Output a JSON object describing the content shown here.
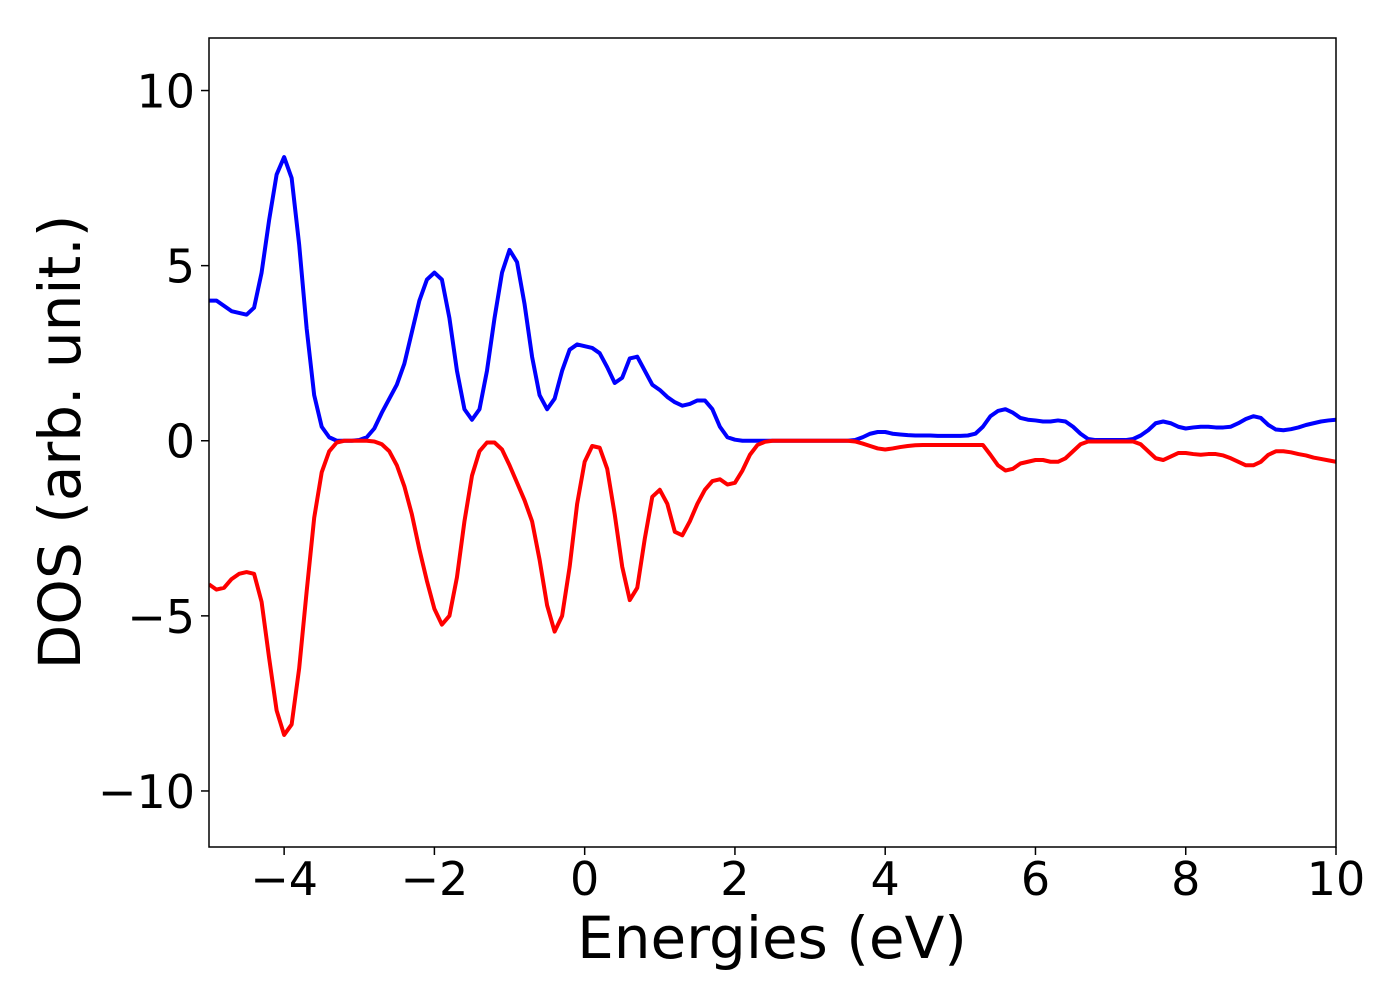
{
  "chart_data": {
    "type": "line",
    "xlabel": "Energies (eV)",
    "ylabel": "DOS (arb. unit.)",
    "x": [
      -5,
      -4.9,
      -4.8,
      -4.7,
      -4.6,
      -4.5,
      -4.4,
      -4.3,
      -4.2,
      -4.1,
      -4,
      -3.9,
      -3.8,
      -3.7,
      -3.6,
      -3.5,
      -3.4,
      -3.3,
      -3.2,
      -3.1,
      -3,
      -2.9,
      -2.8,
      -2.7,
      -2.6,
      -2.5,
      -2.4,
      -2.3,
      -2.2,
      -2.1,
      -2,
      -1.9,
      -1.8,
      -1.7,
      -1.6,
      -1.5,
      -1.4,
      -1.3,
      -1.2,
      -1.1,
      -1,
      -0.9,
      -0.8,
      -0.7,
      -0.6,
      -0.5,
      -0.4,
      -0.3,
      -0.2,
      -0.1,
      0,
      0.1,
      0.2,
      0.3,
      0.4,
      0.5,
      0.6,
      0.7,
      0.8,
      0.9,
      1,
      1.1,
      1.2,
      1.3,
      1.4,
      1.5,
      1.6,
      1.7,
      1.8,
      1.9,
      2,
      2.1,
      2.2,
      2.3,
      2.4,
      2.5,
      2.6,
      2.7,
      2.8,
      2.9,
      3,
      3.1,
      3.2,
      3.3,
      3.4,
      3.5,
      3.6,
      3.7,
      3.8,
      3.9,
      4,
      4.1,
      4.2,
      4.3,
      4.4,
      4.5,
      4.6,
      4.7,
      4.8,
      4.9,
      5,
      5.1,
      5.2,
      5.3,
      5.4,
      5.5,
      5.6,
      5.7,
      5.8,
      5.9,
      6,
      6.1,
      6.2,
      6.3,
      6.4,
      6.5,
      6.6,
      6.7,
      6.8,
      6.9,
      7,
      7.1,
      7.2,
      7.3,
      7.4,
      7.5,
      7.6,
      7.7,
      7.8,
      7.9,
      8,
      8.1,
      8.2,
      8.3,
      8.4,
      8.5,
      8.6,
      8.7,
      8.8,
      8.9,
      9,
      9.1,
      9.2,
      9.3,
      9.4,
      9.5,
      9.6,
      9.7,
      9.8,
      9.9,
      10
    ],
    "series": [
      {
        "color": "#0000ff",
        "values": [
          4.0,
          4.0,
          3.85,
          3.7,
          3.65,
          3.6,
          3.8,
          4.8,
          6.3,
          7.6,
          8.1,
          7.5,
          5.6,
          3.2,
          1.3,
          0.4,
          0.1,
          0,
          0,
          0,
          0.02,
          0.1,
          0.35,
          0.8,
          1.2,
          1.6,
          2.2,
          3.1,
          4.0,
          4.6,
          4.8,
          4.6,
          3.5,
          2.0,
          0.9,
          0.6,
          0.9,
          2.0,
          3.5,
          4.8,
          5.45,
          5.1,
          3.9,
          2.4,
          1.3,
          0.9,
          1.2,
          2.0,
          2.6,
          2.75,
          2.7,
          2.65,
          2.5,
          2.1,
          1.65,
          1.8,
          2.35,
          2.4,
          2.0,
          1.6,
          1.45,
          1.25,
          1.1,
          1.0,
          1.05,
          1.15,
          1.15,
          0.9,
          0.4,
          0.1,
          0.03,
          0,
          0,
          0,
          0,
          0,
          0,
          0,
          0,
          0,
          0,
          0,
          0,
          0,
          0,
          0,
          0.02,
          0.1,
          0.2,
          0.25,
          0.25,
          0.2,
          0.18,
          0.16,
          0.15,
          0.15,
          0.15,
          0.14,
          0.14,
          0.14,
          0.14,
          0.15,
          0.2,
          0.4,
          0.7,
          0.85,
          0.9,
          0.8,
          0.65,
          0.6,
          0.58,
          0.55,
          0.55,
          0.58,
          0.55,
          0.4,
          0.2,
          0.05,
          0.02,
          0.02,
          0.02,
          0.02,
          0.02,
          0.05,
          0.15,
          0.3,
          0.5,
          0.55,
          0.5,
          0.4,
          0.35,
          0.38,
          0.4,
          0.4,
          0.38,
          0.38,
          0.4,
          0.5,
          0.62,
          0.7,
          0.65,
          0.45,
          0.32,
          0.3,
          0.33,
          0.38,
          0.45,
          0.5,
          0.55,
          0.58,
          0.6
        ]
      },
      {
        "color": "#ff0000",
        "values": [
          -4.1,
          -4.25,
          -4.2,
          -3.95,
          -3.8,
          -3.75,
          -3.8,
          -4.6,
          -6.2,
          -7.7,
          -8.4,
          -8.1,
          -6.5,
          -4.3,
          -2.2,
          -0.9,
          -0.3,
          -0.05,
          0,
          0,
          0,
          0,
          -0.02,
          -0.1,
          -0.3,
          -0.7,
          -1.3,
          -2.1,
          -3.1,
          -4.0,
          -4.8,
          -5.25,
          -5.0,
          -3.9,
          -2.3,
          -1.0,
          -0.3,
          -0.05,
          -0.05,
          -0.25,
          -0.7,
          -1.2,
          -1.7,
          -2.3,
          -3.4,
          -4.7,
          -5.45,
          -5.0,
          -3.6,
          -1.8,
          -0.6,
          -0.15,
          -0.2,
          -0.8,
          -2.1,
          -3.6,
          -4.55,
          -4.2,
          -2.8,
          -1.6,
          -1.4,
          -1.8,
          -2.6,
          -2.7,
          -2.3,
          -1.8,
          -1.4,
          -1.15,
          -1.1,
          -1.25,
          -1.2,
          -0.85,
          -0.4,
          -0.12,
          -0.03,
          0,
          0,
          0,
          0,
          0,
          0,
          0,
          0,
          0,
          0,
          0,
          -0.02,
          -0.08,
          -0.15,
          -0.22,
          -0.25,
          -0.22,
          -0.18,
          -0.15,
          -0.13,
          -0.12,
          -0.12,
          -0.12,
          -0.12,
          -0.12,
          -0.12,
          -0.12,
          -0.12,
          -0.12,
          -0.4,
          -0.7,
          -0.85,
          -0.8,
          -0.65,
          -0.6,
          -0.55,
          -0.55,
          -0.6,
          -0.6,
          -0.5,
          -0.3,
          -0.1,
          -0.02,
          -0.02,
          -0.02,
          -0.02,
          -0.02,
          -0.02,
          -0.02,
          -0.1,
          -0.3,
          -0.5,
          -0.55,
          -0.45,
          -0.35,
          -0.35,
          -0.38,
          -0.4,
          -0.38,
          -0.38,
          -0.42,
          -0.5,
          -0.6,
          -0.7,
          -0.7,
          -0.6,
          -0.4,
          -0.3,
          -0.3,
          -0.33,
          -0.38,
          -0.42,
          -0.48,
          -0.52,
          -0.56,
          -0.6
        ]
      }
    ],
    "xlim": [
      -5,
      10
    ],
    "ylim": [
      -11.6,
      11.5
    ],
    "xticks": [
      {
        "value": -4,
        "label": "−4"
      },
      {
        "value": -2,
        "label": "−2"
      },
      0,
      2,
      4,
      6,
      8,
      10
    ],
    "yticks": [
      {
        "value": -10,
        "label": "−10"
      },
      {
        "value": -5,
        "label": "−5"
      },
      0,
      5,
      10
    ]
  }
}
